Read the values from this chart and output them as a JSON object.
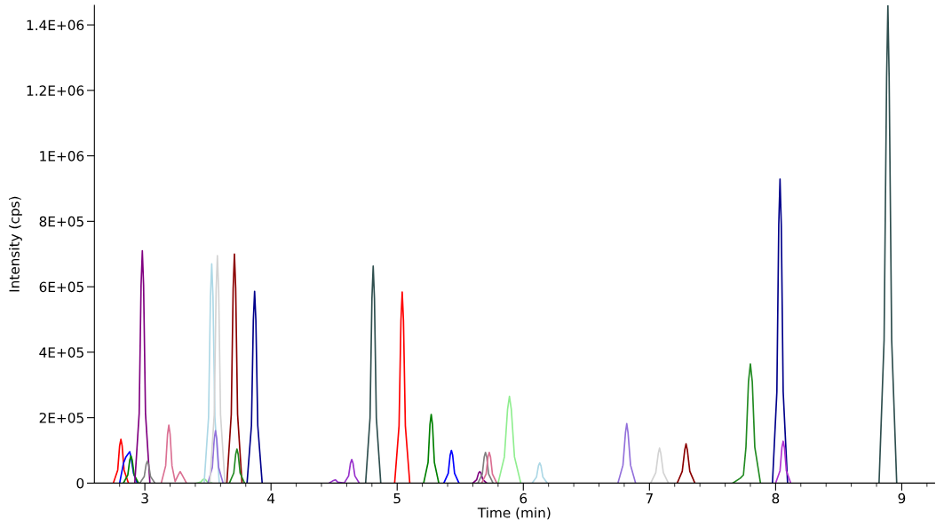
{
  "chart_data": {
    "type": "line",
    "xlabel": "Time (min)",
    "ylabel": "Intensity (cps)",
    "xlim": [
      2.6,
      9.26
    ],
    "ylim": [
      0,
      1460000
    ],
    "xticks": [
      {
        "value": 2.8,
        "label": null
      },
      3,
      {
        "value": 3.2,
        "label": null
      },
      {
        "value": 3.4,
        "label": null
      },
      {
        "value": 3.6,
        "label": null
      },
      {
        "value": 3.8,
        "label": null
      },
      4,
      {
        "value": 4.2,
        "label": null
      },
      {
        "value": 4.4,
        "label": null
      },
      {
        "value": 4.6,
        "label": null
      },
      {
        "value": 4.8,
        "label": null
      },
      5,
      {
        "value": 5.2,
        "label": null
      },
      {
        "value": 5.4,
        "label": null
      },
      {
        "value": 5.6,
        "label": null
      },
      {
        "value": 5.8,
        "label": null
      },
      6,
      {
        "value": 6.2,
        "label": null
      },
      {
        "value": 6.4,
        "label": null
      },
      {
        "value": 6.6,
        "label": null
      },
      {
        "value": 6.8,
        "label": null
      },
      7,
      {
        "value": 7.2,
        "label": null
      },
      {
        "value": 7.4,
        "label": null
      },
      {
        "value": 7.6,
        "label": null
      },
      {
        "value": 7.8,
        "label": null
      },
      8,
      {
        "value": 8.2,
        "label": null
      },
      {
        "value": 8.4,
        "label": null
      },
      {
        "value": 8.6,
        "label": null
      },
      {
        "value": 8.8,
        "label": null
      },
      9,
      {
        "value": 9.2,
        "label": null
      }
    ],
    "yticks": [
      0,
      {
        "value": 200000,
        "label": "2E+05"
      },
      {
        "value": 400000,
        "label": "4E+05"
      },
      {
        "value": 600000,
        "label": "6E+05"
      },
      {
        "value": 800000,
        "label": "8E+05"
      },
      {
        "value": 1000000,
        "label": "1E+06"
      },
      {
        "value": 1200000,
        "label": "1.2E+06"
      },
      {
        "value": 1400000,
        "label": "1.4E+06"
      }
    ],
    "grid": false,
    "legend": false,
    "marker": "none",
    "line_style": "solid",
    "series": [
      {
        "color": "#ff0000",
        "x": [
          2.75,
          2.785,
          2.8,
          2.81,
          2.82,
          2.835,
          2.87
        ],
        "values": [
          0,
          40000,
          114000,
          134000,
          114000,
          40000,
          0
        ]
      },
      {
        "color": "#0000ff",
        "x": [
          2.8,
          2.83,
          2.85,
          2.88,
          2.89,
          2.91,
          2.94
        ],
        "values": [
          0,
          60000,
          80000,
          96000,
          80000,
          30000,
          0
        ]
      },
      {
        "color": "#008000",
        "x": [
          2.83,
          2.865,
          2.88,
          2.89,
          2.9,
          2.915,
          2.95
        ],
        "values": [
          0,
          25000,
          70000,
          83000,
          70000,
          25000,
          0
        ]
      },
      {
        "color": "#800080",
        "x": [
          2.92,
          2.955,
          2.97,
          2.98,
          2.99,
          3.005,
          3.04
        ],
        "values": [
          0,
          213000,
          604000,
          710000,
          604000,
          213000,
          0
        ]
      },
      {
        "color": "#808080",
        "x": [
          2.96,
          2.995,
          3.01,
          3.02,
          3.03,
          3.045,
          3.08
        ],
        "values": [
          0,
          20000,
          57000,
          67000,
          57000,
          20000,
          0
        ]
      },
      {
        "color": "#db7093",
        "x": [
          3.13,
          3.165,
          3.18,
          3.19,
          3.2,
          3.215,
          3.24,
          3.265,
          3.28,
          3.295,
          3.33
        ],
        "values": [
          0,
          53000,
          150000,
          177000,
          150000,
          53000,
          5000,
          25000,
          35000,
          25000,
          0
        ]
      },
      {
        "color": "#90ee90",
        "x": [
          3.41,
          3.445,
          3.46,
          3.47,
          3.48,
          3.495,
          3.53
        ],
        "values": [
          0,
          4000,
          11000,
          13000,
          11000,
          4000,
          0
        ]
      },
      {
        "color": "#add8e6",
        "x": [
          3.47,
          3.505,
          3.52,
          3.53,
          3.54,
          3.555,
          3.59
        ],
        "values": [
          0,
          201000,
          570000,
          670000,
          570000,
          201000,
          0
        ]
      },
      {
        "color": "#9370db",
        "x": [
          3.5,
          3.535,
          3.55,
          3.56,
          3.57,
          3.585,
          3.62
        ],
        "values": [
          0,
          48000,
          136000,
          160000,
          136000,
          48000,
          0
        ]
      },
      {
        "color": "#d3d3d3",
        "x": [
          3.515,
          3.55,
          3.565,
          3.575,
          3.585,
          3.6,
          3.635
        ],
        "values": [
          0,
          209000,
          591000,
          695000,
          591000,
          209000,
          0
        ]
      },
      {
        "color": "#8b0000",
        "x": [
          3.65,
          3.685,
          3.7,
          3.71,
          3.72,
          3.735,
          3.77
        ],
        "values": [
          0,
          210000,
          595000,
          700000,
          595000,
          210000,
          0
        ]
      },
      {
        "color": "#228b22",
        "x": [
          3.67,
          3.705,
          3.72,
          3.73,
          3.74,
          3.755,
          3.79
        ],
        "values": [
          0,
          31000,
          88000,
          104000,
          88000,
          31000,
          0
        ]
      },
      {
        "color": "#00008b",
        "x": [
          3.81,
          3.845,
          3.86,
          3.87,
          3.88,
          3.895,
          3.93
        ],
        "values": [
          0,
          176000,
          498000,
          586000,
          498000,
          176000,
          0
        ]
      },
      {
        "color": "#9932cc",
        "x": [
          4.46,
          4.49,
          4.51,
          4.53,
          4.58,
          4.615,
          4.63,
          4.64,
          4.65,
          4.665,
          4.7
        ],
        "values": [
          0,
          7000,
          10000,
          3000,
          0,
          22000,
          61000,
          72000,
          61000,
          22000,
          0
        ]
      },
      {
        "color": "#2f4f4f",
        "x": [
          4.75,
          4.785,
          4.8,
          4.81,
          4.82,
          4.835,
          4.87
        ],
        "values": [
          0,
          199000,
          564000,
          663000,
          564000,
          199000,
          0
        ]
      },
      {
        "color": "#ff0000",
        "x": [
          4.98,
          5.015,
          5.03,
          5.04,
          5.05,
          5.065,
          5.1
        ],
        "values": [
          0,
          175000,
          496000,
          584000,
          496000,
          175000,
          0
        ]
      },
      {
        "color": "#008000",
        "x": [
          5.21,
          5.245,
          5.26,
          5.27,
          5.28,
          5.295,
          5.33
        ],
        "values": [
          0,
          63000,
          179000,
          210000,
          179000,
          63000,
          0
        ]
      },
      {
        "color": "#0000ff",
        "x": [
          5.37,
          5.405,
          5.42,
          5.43,
          5.44,
          5.455,
          5.49
        ],
        "values": [
          0,
          30000,
          85000,
          100000,
          85000,
          30000,
          0
        ]
      },
      {
        "color": "#800080",
        "x": [
          5.6,
          5.63,
          5.645,
          5.655,
          5.665,
          5.68,
          5.71
        ],
        "values": [
          0,
          10000,
          30000,
          35000,
          30000,
          10000,
          0
        ]
      },
      {
        "color": "#808080",
        "x": [
          5.64,
          5.675,
          5.69,
          5.7,
          5.71,
          5.725,
          5.76
        ],
        "values": [
          0,
          28000,
          80000,
          94000,
          80000,
          28000,
          0
        ]
      },
      {
        "color": "#db7093",
        "x": [
          5.67,
          5.705,
          5.72,
          5.73,
          5.74,
          5.755,
          5.79
        ],
        "values": [
          0,
          28000,
          80000,
          94000,
          80000,
          28000,
          0
        ]
      },
      {
        "color": "#90ee90",
        "x": [
          5.8,
          5.85,
          5.875,
          5.89,
          5.905,
          5.93,
          5.98
        ],
        "values": [
          0,
          80000,
          225000,
          265000,
          225000,
          80000,
          0
        ]
      },
      {
        "color": "#add8e6",
        "x": [
          6.07,
          6.105,
          6.12,
          6.13,
          6.14,
          6.155,
          6.19
        ],
        "values": [
          0,
          19000,
          53000,
          62000,
          53000,
          19000,
          0
        ]
      },
      {
        "color": "#9370db",
        "x": [
          6.75,
          6.79,
          6.81,
          6.82,
          6.83,
          6.85,
          6.89
        ],
        "values": [
          0,
          55000,
          155000,
          182000,
          155000,
          55000,
          0
        ]
      },
      {
        "color": "#d3d3d3",
        "x": [
          7.01,
          7.05,
          7.07,
          7.08,
          7.09,
          7.11,
          7.15
        ],
        "values": [
          0,
          32000,
          91000,
          107000,
          91000,
          32000,
          0
        ]
      },
      {
        "color": "#8b0000",
        "x": [
          7.22,
          7.26,
          7.28,
          7.29,
          7.3,
          7.32,
          7.36
        ],
        "values": [
          0,
          36000,
          102000,
          120000,
          102000,
          36000,
          0
        ]
      },
      {
        "color": "#228b22",
        "x": [
          7.66,
          7.72,
          7.745,
          7.765,
          7.785,
          7.8,
          7.815,
          7.835,
          7.88
        ],
        "values": [
          0,
          15000,
          25000,
          110000,
          310000,
          364000,
          310000,
          110000,
          0
        ]
      },
      {
        "color": "#00008b",
        "x": [
          7.975,
          8.01,
          8.025,
          8.035,
          8.045,
          8.06,
          8.095
        ],
        "values": [
          0,
          279000,
          790000,
          929000,
          790000,
          279000,
          0
        ]
      },
      {
        "color": "#b030d0",
        "x": [
          8.0,
          8.035,
          8.05,
          8.06,
          8.07,
          8.085,
          8.12
        ],
        "values": [
          0,
          38000,
          109000,
          128000,
          109000,
          38000,
          0
        ]
      },
      {
        "color": "#2f4f4f",
        "x": [
          8.82,
          8.86,
          8.88,
          8.89,
          8.9,
          8.92,
          8.96
        ],
        "values": [
          0,
          438000,
          1241000,
          1460000,
          1241000,
          438000,
          0
        ]
      }
    ]
  }
}
